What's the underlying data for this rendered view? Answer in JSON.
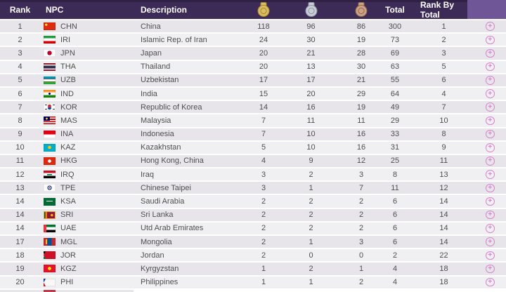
{
  "table": {
    "headers": {
      "rank": "Rank",
      "npc": "NPC",
      "description": "Description",
      "gold_icon": "gold-medal-icon",
      "silver_icon": "silver-medal-icon",
      "bronze_icon": "bronze-medal-icon",
      "total": "Total",
      "rank_by_total": "Rank By Total"
    },
    "rows": [
      {
        "rank": "1",
        "npc": "CHN",
        "description": "China",
        "gold": "118",
        "silver": "96",
        "bronze": "86",
        "total": "300",
        "rank_by_total": "1"
      },
      {
        "rank": "2",
        "npc": "IRI",
        "description": "Islamic Rep. of Iran",
        "gold": "24",
        "silver": "30",
        "bronze": "19",
        "total": "73",
        "rank_by_total": "2"
      },
      {
        "rank": "3",
        "npc": "JPN",
        "description": "Japan",
        "gold": "20",
        "silver": "21",
        "bronze": "28",
        "total": "69",
        "rank_by_total": "3"
      },
      {
        "rank": "4",
        "npc": "THA",
        "description": "Thailand",
        "gold": "20",
        "silver": "13",
        "bronze": "30",
        "total": "63",
        "rank_by_total": "5"
      },
      {
        "rank": "5",
        "npc": "UZB",
        "description": "Uzbekistan",
        "gold": "17",
        "silver": "17",
        "bronze": "21",
        "total": "55",
        "rank_by_total": "6"
      },
      {
        "rank": "6",
        "npc": "IND",
        "description": "India",
        "gold": "15",
        "silver": "20",
        "bronze": "29",
        "total": "64",
        "rank_by_total": "4"
      },
      {
        "rank": "7",
        "npc": "KOR",
        "description": "Republic of Korea",
        "gold": "14",
        "silver": "16",
        "bronze": "19",
        "total": "49",
        "rank_by_total": "7"
      },
      {
        "rank": "8",
        "npc": "MAS",
        "description": "Malaysia",
        "gold": "7",
        "silver": "11",
        "bronze": "11",
        "total": "29",
        "rank_by_total": "10"
      },
      {
        "rank": "9",
        "npc": "INA",
        "description": "Indonesia",
        "gold": "7",
        "silver": "10",
        "bronze": "16",
        "total": "33",
        "rank_by_total": "8"
      },
      {
        "rank": "10",
        "npc": "KAZ",
        "description": "Kazakhstan",
        "gold": "5",
        "silver": "10",
        "bronze": "16",
        "total": "31",
        "rank_by_total": "9"
      },
      {
        "rank": "11",
        "npc": "HKG",
        "description": "Hong Kong, China",
        "gold": "4",
        "silver": "9",
        "bronze": "12",
        "total": "25",
        "rank_by_total": "11"
      },
      {
        "rank": "12",
        "npc": "IRQ",
        "description": "Iraq",
        "gold": "3",
        "silver": "2",
        "bronze": "3",
        "total": "8",
        "rank_by_total": "13"
      },
      {
        "rank": "13",
        "npc": "TPE",
        "description": "Chinese Taipei",
        "gold": "3",
        "silver": "1",
        "bronze": "7",
        "total": "11",
        "rank_by_total": "12"
      },
      {
        "rank": "14",
        "npc": "KSA",
        "description": "Saudi Arabia",
        "gold": "2",
        "silver": "2",
        "bronze": "2",
        "total": "6",
        "rank_by_total": "14"
      },
      {
        "rank": "14",
        "npc": "SRI",
        "description": "Sri Lanka",
        "gold": "2",
        "silver": "2",
        "bronze": "2",
        "total": "6",
        "rank_by_total": "14"
      },
      {
        "rank": "14",
        "npc": "UAE",
        "description": "Utd Arab Emirates",
        "gold": "2",
        "silver": "2",
        "bronze": "2",
        "total": "6",
        "rank_by_total": "14"
      },
      {
        "rank": "17",
        "npc": "MGL",
        "description": "Mongolia",
        "gold": "2",
        "silver": "1",
        "bronze": "3",
        "total": "6",
        "rank_by_total": "14"
      },
      {
        "rank": "18",
        "npc": "JOR",
        "description": "Jordan",
        "gold": "2",
        "silver": "0",
        "bronze": "0",
        "total": "2",
        "rank_by_total": "22"
      },
      {
        "rank": "19",
        "npc": "KGZ",
        "description": "Kyrgyzstan",
        "gold": "1",
        "silver": "2",
        "bronze": "1",
        "total": "4",
        "rank_by_total": "18"
      },
      {
        "rank": "20",
        "npc": "PHI",
        "description": "Philippines",
        "gold": "1",
        "silver": "1",
        "bronze": "2",
        "total": "4",
        "rank_by_total": "18"
      }
    ],
    "partial_row": {
      "flag_color": "#c63c4c"
    }
  },
  "icons": {
    "plus": "+"
  },
  "colors": {
    "header_bg": "#3c2b57",
    "header_right_bg": "#6f5697",
    "row_dark_bg": "#e7e5e9",
    "row_light_bg": "#f0eff2",
    "plus_accent": "#d783cf",
    "gold_medal": "#d9bd62",
    "silver_medal": "#c9cdd5",
    "bronze_medal": "#cba287",
    "row_text": "#4f4f4f"
  }
}
